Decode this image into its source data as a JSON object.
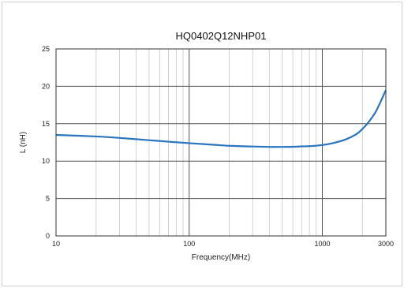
{
  "chart_data": {
    "type": "line",
    "title": "HQ0402Q12NHP01",
    "xlabel": "Frequency(MHz)",
    "ylabel": "L (nH)",
    "x_scale": "log",
    "xlim": [
      10,
      3000
    ],
    "ylim": [
      0,
      25
    ],
    "x_ticks": [
      "10",
      "100",
      "1000",
      "3000"
    ],
    "y_ticks": [
      "0",
      "5",
      "10",
      "15",
      "20",
      "25"
    ],
    "grid": true,
    "series": [
      {
        "color": "#2a74c0",
        "x": [
          10,
          20,
          30,
          50,
          70,
          100,
          150,
          200,
          300,
          400,
          500,
          600,
          700,
          800,
          1000,
          1200,
          1500,
          1800,
          2000,
          2200,
          2500,
          2800,
          3000
        ],
        "y": [
          13.5,
          13.3,
          13.1,
          12.8,
          12.6,
          12.4,
          12.2,
          12.05,
          11.95,
          11.9,
          11.9,
          11.92,
          11.97,
          12.0,
          12.15,
          12.4,
          12.9,
          13.6,
          14.3,
          15.1,
          16.5,
          18.3,
          19.5
        ]
      }
    ]
  }
}
